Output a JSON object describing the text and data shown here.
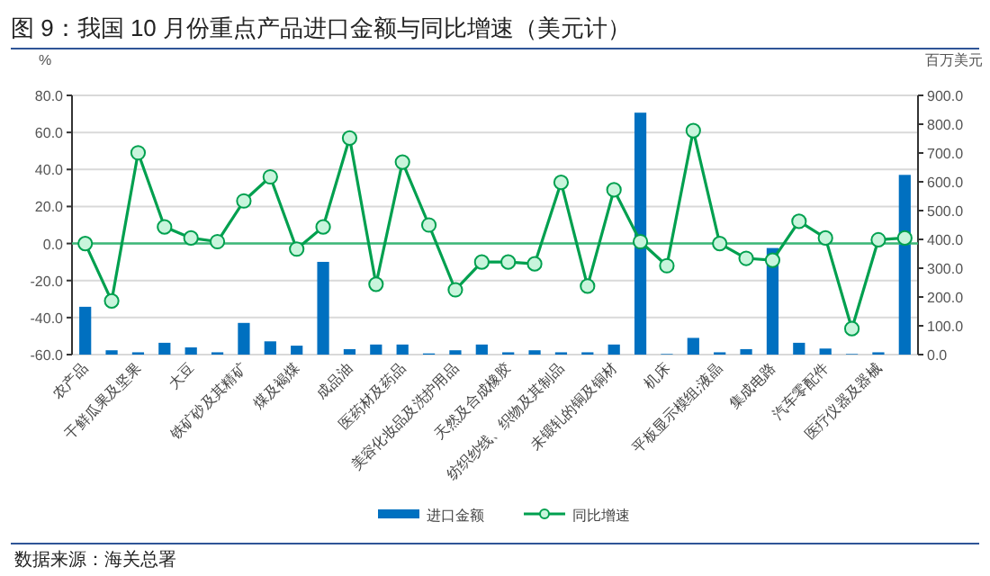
{
  "chart_data": {
    "type": "bar",
    "title": "图 9：我国 10 月份重点产品进口金额与同比增速（美元计）",
    "ylabel": "%",
    "y2label": "百万美元",
    "categories": [
      "农产品",
      null,
      "干鲜瓜果及坚果",
      null,
      "大豆",
      null,
      "铁矿砂及其精矿",
      null,
      "煤及褐煤",
      null,
      "成品油",
      null,
      "医药材及药品",
      null,
      "美容化妆品及洗护用品",
      null,
      "天然及合成橡胶",
      null,
      "纺织纱线、织物及其制品",
      null,
      "未锻轧的铜及铜材",
      null,
      "机床",
      null,
      "平板显示模组;液晶",
      null,
      "集成电路",
      null,
      "汽车零配件",
      null,
      "医疗仪器及器械",
      null
    ],
    "series": [
      {
        "name": "进口金额",
        "axis": "y2",
        "color": "#0070c0",
        "values": [
          166,
          15,
          8,
          41,
          25,
          8,
          110,
          46,
          31,
          322,
          19,
          35,
          35,
          4,
          15,
          35,
          8,
          15,
          8,
          8,
          35,
          840,
          2,
          58,
          8,
          19,
          370,
          41,
          21,
          2,
          8,
          624
        ]
      },
      {
        "name": "同比增速",
        "type": "line",
        "axis": "y",
        "color": "#00a04f",
        "values": [
          0,
          -31,
          49,
          9,
          3,
          1,
          23,
          36,
          -3,
          9,
          57,
          -22,
          44,
          10,
          -25,
          -10,
          -10,
          -11,
          33,
          -23,
          29,
          1,
          -12,
          61,
          0,
          -8,
          -9,
          12,
          3,
          -46,
          2,
          3
        ]
      }
    ],
    "ylim": [
      -60,
      80
    ],
    "yticks": [
      {
        "value": -60,
        "label": "-60.0"
      },
      {
        "value": -40,
        "label": "-40.0"
      },
      {
        "value": -20,
        "label": "-20.0"
      },
      {
        "value": 0,
        "label": "0.0"
      },
      {
        "value": 20,
        "label": "20.0"
      },
      {
        "value": 40,
        "label": "40.0"
      },
      {
        "value": 60,
        "label": "60.0"
      },
      {
        "value": 80,
        "label": "80.0"
      }
    ],
    "y2lim": [
      0,
      900
    ],
    "y2ticks": [
      {
        "value": 0,
        "label": "0.0"
      },
      {
        "value": 100,
        "label": "100.0"
      },
      {
        "value": 200,
        "label": "200.0"
      },
      {
        "value": 300,
        "label": "300.0"
      },
      {
        "value": 400,
        "label": "400.0"
      },
      {
        "value": 500,
        "label": "500.0"
      },
      {
        "value": 600,
        "label": "600.0"
      },
      {
        "value": 700,
        "label": "700.0"
      },
      {
        "value": 800,
        "label": "800.0"
      },
      {
        "value": 900,
        "label": "900.0"
      }
    ],
    "ref_lines": [
      {
        "axis": "y",
        "value": 0,
        "color": "#3cb878"
      }
    ],
    "grid": "y",
    "legend": "bottom",
    "marker": "circle",
    "line_style": "solid",
    "annotations": [
      "数据来源：海关总署"
    ]
  }
}
